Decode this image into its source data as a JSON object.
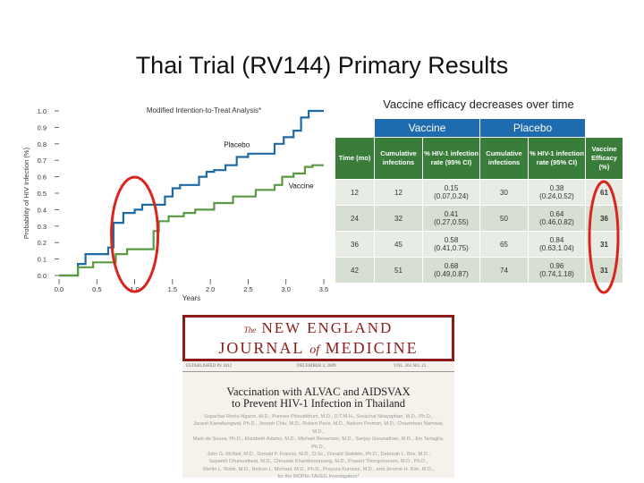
{
  "slide_title": "Thai Trial (RV144) Primary Results",
  "chart_data": [
    {
      "type": "line",
      "title": "Modified Intention-to-Treat Analysis*",
      "xlabel": "Years",
      "ylabel": "Probability of HIV Infection (%)",
      "xlim": [
        0,
        3.5
      ],
      "ylim": [
        0,
        1.0
      ],
      "x_ticks": [
        "0.0",
        "0.5",
        "1.0",
        "1.5",
        "2.0",
        "2.5",
        "3.0",
        "3.5"
      ],
      "y_ticks": [
        "0.0",
        "0.1",
        "0.2",
        "0.3",
        "0.4",
        "0.5",
        "0.6",
        "0.7",
        "0.8",
        "0.9",
        "1.0"
      ],
      "series": [
        {
          "name": "Placebo",
          "color": "#1f6aa5",
          "points": [
            [
              0.0,
              0.0
            ],
            [
              0.25,
              0.0
            ],
            [
              0.25,
              0.07
            ],
            [
              0.35,
              0.07
            ],
            [
              0.35,
              0.13
            ],
            [
              0.65,
              0.13
            ],
            [
              0.65,
              0.17
            ],
            [
              0.72,
              0.17
            ],
            [
              0.72,
              0.32
            ],
            [
              0.85,
              0.32
            ],
            [
              0.85,
              0.38
            ],
            [
              1.0,
              0.38
            ],
            [
              1.0,
              0.4
            ],
            [
              1.1,
              0.4
            ],
            [
              1.1,
              0.43
            ],
            [
              1.4,
              0.43
            ],
            [
              1.4,
              0.48
            ],
            [
              1.5,
              0.48
            ],
            [
              1.5,
              0.53
            ],
            [
              1.6,
              0.53
            ],
            [
              1.6,
              0.55
            ],
            [
              1.85,
              0.55
            ],
            [
              1.85,
              0.6
            ],
            [
              1.95,
              0.6
            ],
            [
              1.95,
              0.63
            ],
            [
              2.05,
              0.63
            ],
            [
              2.05,
              0.64
            ],
            [
              2.2,
              0.64
            ],
            [
              2.2,
              0.67
            ],
            [
              2.35,
              0.67
            ],
            [
              2.35,
              0.72
            ],
            [
              2.5,
              0.72
            ],
            [
              2.5,
              0.74
            ],
            [
              2.85,
              0.74
            ],
            [
              2.85,
              0.8
            ],
            [
              2.97,
              0.8
            ],
            [
              2.97,
              0.84
            ],
            [
              3.1,
              0.84
            ],
            [
              3.1,
              0.88
            ],
            [
              3.2,
              0.88
            ],
            [
              3.2,
              0.96
            ],
            [
              3.3,
              0.96
            ],
            [
              3.3,
              1.0
            ],
            [
              3.5,
              1.0
            ]
          ]
        },
        {
          "name": "Vaccine",
          "color": "#5a9a42",
          "points": [
            [
              0.0,
              0.0
            ],
            [
              0.25,
              0.0
            ],
            [
              0.25,
              0.05
            ],
            [
              0.45,
              0.05
            ],
            [
              0.45,
              0.08
            ],
            [
              0.75,
              0.08
            ],
            [
              0.75,
              0.13
            ],
            [
              0.9,
              0.13
            ],
            [
              0.9,
              0.16
            ],
            [
              1.25,
              0.16
            ],
            [
              1.25,
              0.27
            ],
            [
              1.32,
              0.27
            ],
            [
              1.32,
              0.33
            ],
            [
              1.45,
              0.33
            ],
            [
              1.45,
              0.36
            ],
            [
              1.65,
              0.36
            ],
            [
              1.65,
              0.38
            ],
            [
              1.8,
              0.38
            ],
            [
              1.8,
              0.4
            ],
            [
              2.05,
              0.4
            ],
            [
              2.05,
              0.44
            ],
            [
              2.3,
              0.44
            ],
            [
              2.3,
              0.48
            ],
            [
              2.6,
              0.48
            ],
            [
              2.6,
              0.52
            ],
            [
              2.85,
              0.52
            ],
            [
              2.85,
              0.55
            ],
            [
              2.95,
              0.55
            ],
            [
              2.95,
              0.6
            ],
            [
              3.1,
              0.6
            ],
            [
              3.1,
              0.62
            ],
            [
              3.25,
              0.62
            ],
            [
              3.25,
              0.66
            ],
            [
              3.35,
              0.66
            ],
            [
              3.35,
              0.67
            ],
            [
              3.5,
              0.67
            ]
          ]
        }
      ],
      "highlight_x": 1.0,
      "highlight_color": "#d8261f"
    },
    {
      "type": "table",
      "title": "Vaccine efficacy decreases over time",
      "group_headers": [
        "Vaccine",
        "Placebo"
      ],
      "columns": [
        "Time (mo)",
        "Cumulative infections",
        "% HIV-1 infection rate (95% CI)",
        "Cumulative infections",
        "% HIV-1 infection rate (95% CI)",
        "Vaccine Efficacy (%)"
      ],
      "rows": [
        [
          "12",
          "12",
          "0.15 (0.07,0.24)",
          "30",
          "0.38 (0.24,0.52)",
          "61"
        ],
        [
          "24",
          "32",
          "0.41 (0.27,0.55)",
          "50",
          "0.64 (0.46,0.82)",
          "36"
        ],
        [
          "36",
          "45",
          "0.58 (0.41,0.75)",
          "65",
          "0.84 (0.63,1.04)",
          "31"
        ],
        [
          "42",
          "51",
          "0.68 (0.49,0.87)",
          "74",
          "0.96 (0.74,1.18)",
          "31"
        ]
      ]
    }
  ],
  "nejm": {
    "masthead_the": "The",
    "masthead_line1": "NEW ENGLAND",
    "masthead_line2_a": "JOURNAL",
    "masthead_line2_of": "of",
    "masthead_line2_b": "MEDICINE",
    "established": "ESTABLISHED IN 1812",
    "date": "DECEMBER 3, 2009",
    "volume": "VOL. 361  NO. 23",
    "article_title_1": "Vaccination with ALVAC and AIDSVAX",
    "article_title_2": "to Prevent HIV-1 Infection in Thailand",
    "authors": [
      "Supachai Rerks-Ngarm, M.D., Punnee Pitisuttithum, M.D., D.T.M.H., Sorachai Nitayaphan, M.D., Ph.D.,",
      "Jaranit Kaewkungwal, Ph.D., Joseph Chiu, M.D., Robert Paris, M.D., Nakorn Premsri, M.D., Chawetsan Namwat, M.D.,",
      "Mark de Souza, Ph.D., Elizabeth Adams, M.D., Michael Benenson, M.D., Sanjay Gurunathan, M.D., Jim Tartaglia, Ph.D.,",
      "John G. McNeil, M.D., Donald P. Francis, M.D., D.Sc., Donald Stablein, Ph.D., Deborah L. Birx, M.D.,",
      "Supamit Chunsuttiwat, M.D., Chirasak Khamboonruang, M.D., Prasert Thongcharoen, M.D., Ph.D.,",
      "Merlin L. Robb, M.D., Nelson L. Michael, M.D., Ph.D., Prayura Kunasol, M.D., and Jerome H. Kim, M.D.,",
      "for the MOPH–TAVEG Investigators*"
    ]
  }
}
